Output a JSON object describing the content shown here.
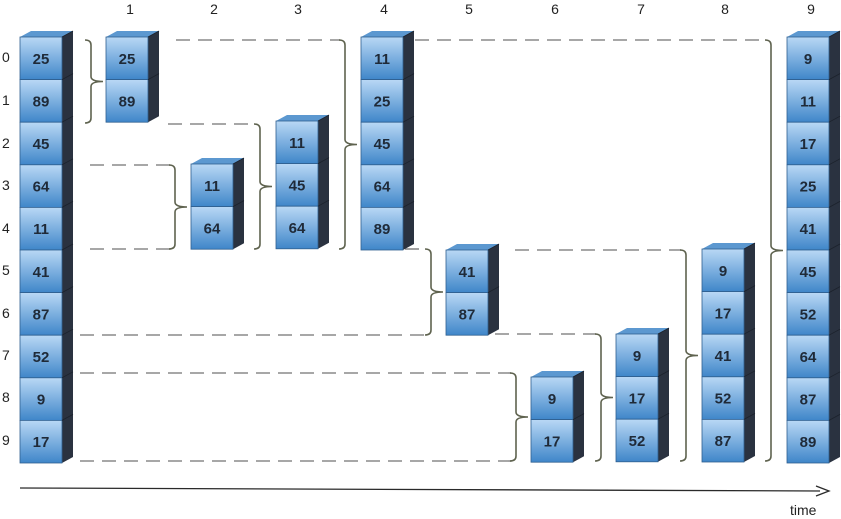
{
  "step_labels": [
    "1",
    "2",
    "3",
    "4",
    "5",
    "6",
    "7",
    "8",
    "9"
  ],
  "index_labels": [
    "0",
    "1",
    "2",
    "3",
    "4",
    "5",
    "6",
    "7",
    "8",
    "9"
  ],
  "time_label": "time",
  "colors": {
    "cube_light": "#b9d8f5",
    "cube_dark": "#3f86c9",
    "cube_top": "#5c98d0",
    "cube_side": "#2a3240",
    "dash": "#8a8a8a",
    "bracket": "#5f634f",
    "text": "#1f2a38"
  },
  "columns": [
    {
      "name": "initial",
      "values": [
        25,
        89,
        45,
        64,
        11,
        41,
        87,
        52,
        9,
        17
      ]
    },
    {
      "name": "step-1",
      "values": [
        25,
        89
      ]
    },
    {
      "name": "step-2",
      "values": [
        11,
        64
      ]
    },
    {
      "name": "step-3",
      "values": [
        11,
        45,
        64
      ]
    },
    {
      "name": "step-4",
      "values": [
        11,
        25,
        45,
        64,
        89
      ]
    },
    {
      "name": "step-5",
      "values": [
        41,
        87
      ]
    },
    {
      "name": "step-6",
      "values": [
        9,
        17
      ]
    },
    {
      "name": "step-7",
      "values": [
        9,
        17,
        52
      ]
    },
    {
      "name": "step-8",
      "values": [
        9,
        17,
        41,
        52,
        87
      ]
    },
    {
      "name": "step-9",
      "values": [
        9,
        11,
        17,
        25,
        41,
        45,
        52,
        64,
        87,
        89
      ]
    }
  ]
}
